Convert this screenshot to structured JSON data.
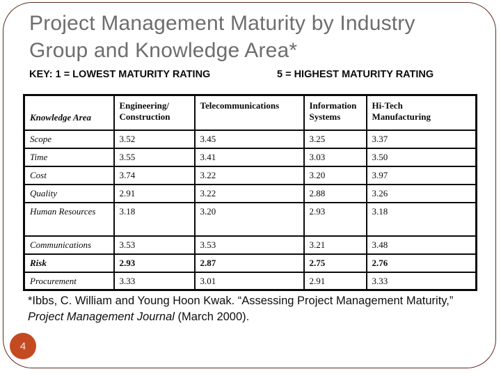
{
  "slide": {
    "title_line1": "Project Management Maturity by Industry",
    "title_line2": "Group and Knowledge Area*",
    "key_left": "KEY: 1 = LOWEST MATURITY RATING",
    "key_right": "5 = HIGHEST MATURITY RATING",
    "page_number": "4",
    "accent_color": "#c44a22",
    "title_color": "#6e6d6d"
  },
  "table": {
    "columns": [
      {
        "label": "Knowledge Area"
      },
      {
        "label": "Engineering/\nConstruction"
      },
      {
        "label": "Telecommunications"
      },
      {
        "label": "Information\nSystems"
      },
      {
        "label": "Hi-Tech\nManufacturing"
      }
    ],
    "rows": [
      {
        "label": "Scope",
        "values": [
          "3.52",
          "3.45",
          "3.25",
          "3.37"
        ]
      },
      {
        "label": "Time",
        "values": [
          "3.55",
          "3.41",
          "3.03",
          "3.50"
        ]
      },
      {
        "label": "Cost",
        "values": [
          "3.74",
          "3.22",
          "3.20",
          "3.97"
        ]
      },
      {
        "label": "Quality",
        "values": [
          "2.91",
          "3.22",
          "2.88",
          "3.26"
        ]
      },
      {
        "label": "Human Resources",
        "values": [
          "3.18",
          "3.20",
          "2.93",
          "3.18"
        ],
        "tall": true
      },
      {
        "label": "Communications",
        "values": [
          "3.53",
          "3.53",
          "3.21",
          "3.48"
        ]
      },
      {
        "label": "Risk",
        "values": [
          "2.93",
          "2.87",
          "2.75",
          "2.76"
        ],
        "emphasis": true
      },
      {
        "label": "Procurement",
        "values": [
          "3.33",
          "3.01",
          "2.91",
          "3.33"
        ]
      }
    ]
  },
  "footnote": {
    "line1": "*Ibbs, C. William and Young Hoon Kwak. “Assessing Project Management Maturity,”",
    "line2_italic": "Project Management Journal",
    "line2_rest": " (March 2000)."
  }
}
